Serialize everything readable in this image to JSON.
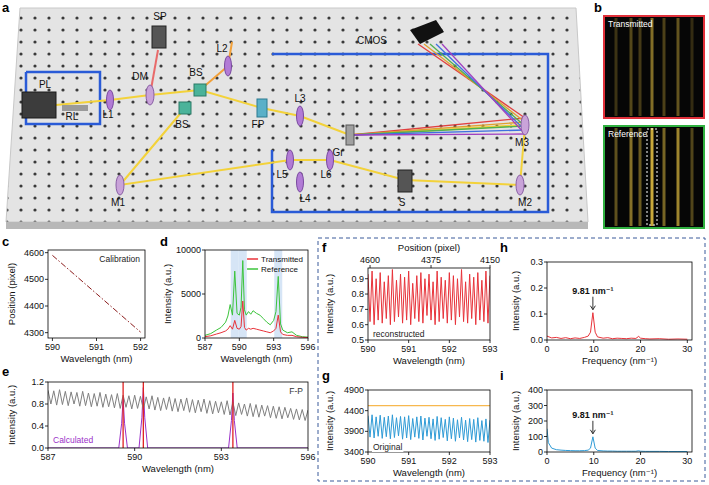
{
  "setup": {
    "panel": "a",
    "components": [
      "PL",
      "RL",
      "L1",
      "DM",
      "SP",
      "L2",
      "BS",
      "BS",
      "FP",
      "L3",
      "CMOS",
      "Gr",
      "M3",
      "M1",
      "L4",
      "L5",
      "L6",
      "S",
      "M2"
    ]
  },
  "camera": {
    "panel": "b",
    "images": [
      "Transmitted",
      "Reference"
    ]
  },
  "chart_data": [
    {
      "panel": "c",
      "type": "line",
      "xlabel": "Wavelength (nm)",
      "ylabel": "Position (pixel)",
      "xlim": [
        589.9,
        592.1
      ],
      "xticks": [
        590,
        591,
        592
      ],
      "ylim": [
        4280,
        4610
      ],
      "yticks": [
        4300,
        4400,
        4500,
        4600
      ],
      "series": [
        {
          "name": "Calibration",
          "color": "#8b1c1c",
          "line_style": "dashdot",
          "x": [
            590,
            590.5,
            591,
            591.5,
            592
          ],
          "values": [
            4590,
            4518,
            4446,
            4374,
            4302
          ]
        }
      ]
    },
    {
      "panel": "d",
      "type": "line",
      "xlabel": "Wavelength (nm)",
      "ylabel": "Intensity (a.u.)",
      "xlim": [
        587,
        596
      ],
      "xticks": [
        587,
        590,
        593,
        596
      ],
      "ylim": [
        0,
        10000
      ],
      "yticks": [
        0,
        5000,
        10000
      ],
      "legend": "upper right",
      "highlights": [
        589.6,
        590.3,
        593.4
      ],
      "x": [
        587,
        587.5,
        588,
        588.4,
        588.8,
        589,
        589.2,
        589.4,
        589.6,
        589.8,
        590,
        590.15,
        590.3,
        590.45,
        590.6,
        590.8,
        591,
        591.2,
        591.5,
        591.8,
        592.1,
        592.4,
        592.7,
        593,
        593.2,
        593.4,
        593.6,
        593.8,
        594.2,
        594.6,
        595,
        595.5,
        596
      ],
      "series": [
        {
          "name": "Transmitted",
          "color": "#e8333a",
          "values": [
            150,
            250,
            450,
            600,
            800,
            1000,
            1400,
            1000,
            2000,
            1100,
            1000,
            1300,
            4200,
            1200,
            900,
            1100,
            1000,
            1100,
            1000,
            900,
            800,
            700,
            600,
            800,
            1100,
            2600,
            700,
            400,
            300,
            300,
            150,
            80,
            50
          ]
        },
        {
          "name": "Reference",
          "color": "#3cc43c",
          "values": [
            300,
            500,
            900,
            1200,
            1800,
            2500,
            3800,
            2600,
            7600,
            2800,
            2600,
            3500,
            8800,
            3200,
            2600,
            3000,
            2700,
            3100,
            2800,
            2600,
            2200,
            1800,
            1500,
            2000,
            3000,
            7000,
            1600,
            900,
            600,
            700,
            300,
            150,
            100
          ]
        }
      ]
    },
    {
      "panel": "e",
      "type": "line",
      "xlabel": "Wavelength (nm)",
      "ylabel": "Intensity (a.u.)",
      "xlim": [
        587,
        596
      ],
      "xticks": [
        587,
        590,
        593,
        596
      ],
      "ylim": [
        0,
        1.2
      ],
      "yticks": [
        {
          "value": 0,
          "label": "0.0"
        },
        0.4,
        0.8,
        1.2
      ],
      "markers": [
        589.6,
        590.3,
        593.4
      ],
      "series": [
        {
          "name": "F-P",
          "color": "#808080",
          "x": [
            587,
            587.1,
            587.2,
            587.3,
            587.4,
            587.5,
            587.6,
            587.7,
            587.8,
            587.9,
            588,
            588.1,
            588.2,
            588.3,
            588.4,
            588.5,
            588.6,
            588.7,
            588.8,
            588.9,
            589,
            589.1,
            589.2,
            589.3,
            589.4,
            589.5,
            589.6,
            589.7,
            589.8,
            589.9,
            590,
            590.1,
            590.2,
            590.3,
            590.4,
            590.5,
            590.6,
            590.7,
            590.8,
            590.9,
            591,
            591.1,
            591.2,
            591.3,
            591.4,
            591.5,
            591.6,
            591.7,
            591.8,
            591.9,
            592,
            592.1,
            592.2,
            592.3,
            592.4,
            592.5,
            592.6,
            592.7,
            592.8,
            592.9,
            593,
            593.1,
            593.2,
            593.3,
            593.4,
            593.5,
            593.6,
            593.7,
            593.8,
            593.9,
            594,
            594.1,
            594.2,
            594.3,
            594.4,
            594.5,
            594.6,
            594.7,
            594.8,
            594.9,
            595,
            595.1,
            595.2,
            595.3,
            595.4,
            595.5,
            595.6,
            595.7,
            595.8,
            595.9,
            596
          ],
          "values": [
            1.05,
            0.8,
            1.04,
            0.78,
            1.06,
            0.79,
            1.03,
            0.77,
            1.02,
            0.8,
            1.01,
            0.76,
            1.03,
            0.77,
            1.0,
            0.75,
            0.99,
            0.76,
            1.01,
            0.74,
            0.98,
            0.75,
            0.97,
            0.73,
            0.99,
            0.72,
            0.96,
            0.74,
            0.95,
            0.71,
            0.96,
            0.72,
            0.94,
            0.7,
            0.93,
            0.71,
            0.95,
            0.69,
            0.92,
            0.68,
            0.91,
            0.7,
            0.93,
            0.67,
            0.9,
            0.66,
            0.89,
            0.68,
            0.91,
            0.65,
            0.88,
            0.64,
            0.87,
            0.66,
            0.89,
            0.63,
            0.86,
            0.62,
            0.85,
            0.64,
            0.84,
            0.61,
            0.86,
            0.6,
            0.83,
            0.59,
            0.82,
            0.61,
            0.8,
            0.58,
            0.81,
            0.57,
            0.79,
            0.56,
            0.78,
            0.58,
            0.77,
            0.55,
            0.76,
            0.54,
            0.75,
            0.53,
            0.74,
            0.55,
            0.72,
            0.52,
            0.71,
            0.51,
            0.7,
            0.5,
            0.69
          ]
        },
        {
          "name": "Calculated",
          "color": "#9b30c8",
          "x": [
            587,
            589.45,
            589.55,
            589.6,
            589.65,
            589.75,
            590.15,
            590.25,
            590.3,
            590.35,
            590.45,
            593.25,
            593.35,
            593.4,
            593.45,
            593.55,
            596
          ],
          "values": [
            0,
            0,
            0.45,
            0.9,
            0.45,
            0,
            0,
            0.55,
            1.1,
            0.55,
            0,
            0,
            0.5,
            1.0,
            0.5,
            0,
            0
          ]
        }
      ]
    },
    {
      "panel": "f",
      "type": "line",
      "xlabel": "Wavelength (nm)",
      "ylabel": "Intensity (a.u.)",
      "top_xlabel": "Position (pixel)",
      "top_xticks": [
        {
          "value": 590.05,
          "label": "4600"
        },
        {
          "value": 591.55,
          "label": "4375"
        },
        {
          "value": 593,
          "label": "4150"
        }
      ],
      "xlim": [
        590,
        593
      ],
      "xticks": [
        590,
        591,
        592,
        593
      ],
      "ylim": [
        0.5,
        0.97
      ],
      "yticks": [
        0.5,
        0.6,
        0.7,
        0.8,
        0.9
      ],
      "series": [
        {
          "name": "reconstructed",
          "color": "#e8333a",
          "x": [
            590,
            590.05,
            590.1,
            590.15,
            590.2,
            590.25,
            590.3,
            590.35,
            590.4,
            590.45,
            590.5,
            590.55,
            590.6,
            590.65,
            590.7,
            590.75,
            590.8,
            590.85,
            590.9,
            590.95,
            591,
            591.05,
            591.1,
            591.15,
            591.2,
            591.25,
            591.3,
            591.35,
            591.4,
            591.45,
            591.5,
            591.55,
            591.6,
            591.65,
            591.7,
            591.75,
            591.8,
            591.85,
            591.9,
            591.95,
            592,
            592.05,
            592.1,
            592.15,
            592.2,
            592.25,
            592.3,
            592.35,
            592.4,
            592.45,
            592.5,
            592.55,
            592.6,
            592.65,
            592.7,
            592.75,
            592.8,
            592.85,
            592.9,
            592.95,
            593
          ],
          "values": [
            0.93,
            0.62,
            0.95,
            0.6,
            0.9,
            0.63,
            0.94,
            0.61,
            0.88,
            0.64,
            0.92,
            0.6,
            0.96,
            0.62,
            0.89,
            0.65,
            0.93,
            0.61,
            0.91,
            0.63,
            0.95,
            0.6,
            0.87,
            0.64,
            0.92,
            0.62,
            0.94,
            0.61,
            0.9,
            0.66,
            0.93,
            0.63,
            0.88,
            0.6,
            0.95,
            0.62,
            0.91,
            0.64,
            0.89,
            0.61,
            0.94,
            0.63,
            0.92,
            0.6,
            0.9,
            0.65,
            0.96,
            0.62,
            0.88,
            0.61,
            0.93,
            0.64,
            0.91,
            0.6,
            0.94,
            0.63,
            0.89,
            0.62,
            0.95,
            0.61,
            0.92
          ]
        }
      ]
    },
    {
      "panel": "g",
      "type": "line",
      "xlabel": "Wavelength (nm)",
      "ylabel": "Intensity (a.u.)",
      "xlim": [
        590,
        593
      ],
      "xticks": [
        590,
        591,
        592,
        593
      ],
      "ylim": [
        3400,
        4900
      ],
      "yticks": [
        3400,
        3900,
        4400,
        4900
      ],
      "series": [
        {
          "name": "Original",
          "color": "#2f9bd6",
          "x": [
            590,
            590.05,
            590.1,
            590.15,
            590.2,
            590.25,
            590.3,
            590.35,
            590.4,
            590.45,
            590.5,
            590.55,
            590.6,
            590.65,
            590.7,
            590.75,
            590.8,
            590.85,
            590.9,
            590.95,
            591,
            591.05,
            591.1,
            591.15,
            591.2,
            591.25,
            591.3,
            591.35,
            591.4,
            591.45,
            591.5,
            591.55,
            591.6,
            591.65,
            591.7,
            591.75,
            591.8,
            591.85,
            591.9,
            591.95,
            592,
            592.05,
            592.1,
            592.15,
            592.2,
            592.25,
            592.3,
            592.35,
            592.4,
            592.45,
            592.5,
            592.55,
            592.6,
            592.65,
            592.7,
            592.75,
            592.8,
            592.85,
            592.9,
            592.95,
            593
          ],
          "values": [
            4280,
            3760,
            4300,
            3740,
            4250,
            3780,
            4290,
            3730,
            4240,
            3770,
            4270,
            3720,
            4300,
            3750,
            4230,
            3790,
            4260,
            3710,
            4250,
            3740,
            4280,
            3700,
            4210,
            3760,
            4250,
            3730,
            4270,
            3690,
            4220,
            3780,
            4240,
            3720,
            4200,
            3680,
            4260,
            3710,
            4230,
            3750,
            4190,
            3670,
            4250,
            3720,
            4220,
            3660,
            4180,
            3740,
            4240,
            3690,
            4170,
            3650,
            4210,
            3700,
            4190,
            3640,
            4230,
            3680,
            4160,
            3660,
            4200,
            3630,
            4170
          ]
        },
        {
          "color": "#f5a623",
          "x": [
            590,
            593
          ],
          "values": [
            4520,
            4520
          ]
        }
      ]
    },
    {
      "panel": "h",
      "type": "line",
      "xlabel": "Frequency (nm⁻¹)",
      "ylabel": "Intensity (a.u.)",
      "xlim": [
        0,
        31
      ],
      "xticks": [
        0,
        10,
        20,
        30
      ],
      "ylim": [
        0,
        0.3
      ],
      "yticks": [
        {
          "value": 0,
          "label": "0.0"
        },
        0.1,
        0.2,
        0.3
      ],
      "annotations": [
        {
          "text": "9.81 nm⁻¹",
          "x": 9.81,
          "y": 0.105
        }
      ],
      "series": [
        {
          "color": "#e8333a",
          "x": [
            0,
            1,
            2,
            3,
            4,
            5,
            6,
            7,
            8,
            8.8,
            9.3,
            9.81,
            10.3,
            10.8,
            12,
            13,
            14,
            15,
            16,
            17,
            18,
            19,
            19.6,
            20,
            21,
            22,
            24,
            26,
            28,
            30
          ],
          "values": [
            0.015,
            0.008,
            0.01,
            0.006,
            0.009,
            0.005,
            0.008,
            0.006,
            0.01,
            0.015,
            0.03,
            0.105,
            0.03,
            0.012,
            0.007,
            0.009,
            0.005,
            0.007,
            0.006,
            0.005,
            0.007,
            0.006,
            0.014,
            0.007,
            0.005,
            0.004,
            0.005,
            0.003,
            0.004,
            0.003
          ]
        }
      ]
    },
    {
      "panel": "i",
      "type": "line",
      "xlabel": "Frequency (nm⁻¹)",
      "ylabel": "Intensity (a.u.)",
      "xlim": [
        0,
        31
      ],
      "xticks": [
        0,
        10,
        20,
        30
      ],
      "ylim": [
        0,
        400
      ],
      "yticks": [
        0,
        100,
        200,
        300,
        400
      ],
      "annotations": [
        {
          "text": "9.81 nm⁻¹",
          "x": 9.81,
          "y": 98
        }
      ],
      "series": [
        {
          "color": "#2f9bd6",
          "x": [
            0,
            0.3,
            1,
            2,
            3,
            4,
            5,
            6,
            7,
            8,
            8.8,
            9.3,
            9.81,
            10.3,
            10.8,
            12,
            13,
            14,
            15,
            16,
            17,
            18,
            19,
            19.6,
            20,
            21,
            22,
            24,
            26,
            28,
            30
          ],
          "values": [
            150,
            60,
            25,
            15,
            12,
            10,
            9,
            8,
            8,
            9,
            12,
            25,
            98,
            25,
            10,
            7,
            6,
            6,
            5,
            5,
            5,
            5,
            5,
            8,
            5,
            4,
            4,
            4,
            3,
            3,
            3
          ]
        }
      ]
    }
  ]
}
